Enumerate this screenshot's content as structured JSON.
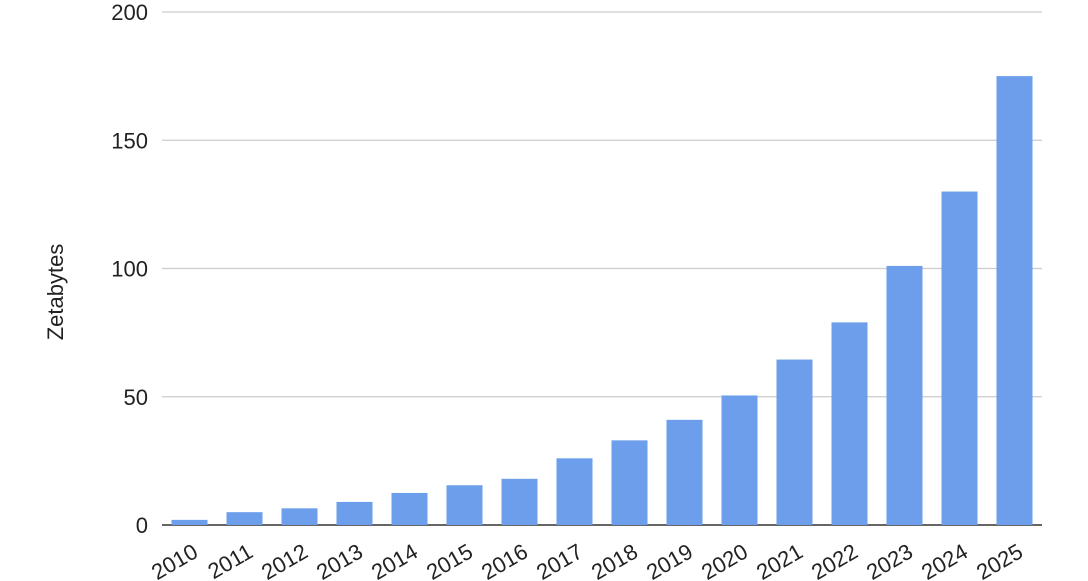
{
  "chart_data": {
    "type": "bar",
    "title": "",
    "xlabel": "",
    "ylabel": "Zetabytes",
    "categories": [
      "2010",
      "2011",
      "2012",
      "2013",
      "2014",
      "2015",
      "2016",
      "2017",
      "2018",
      "2019",
      "2020",
      "2021",
      "2022",
      "2023",
      "2024",
      "2025"
    ],
    "values": [
      2,
      5,
      6.5,
      9,
      12.5,
      15.5,
      18,
      26,
      33,
      41,
      50.5,
      64.5,
      79,
      101,
      130,
      175
    ],
    "ylim": [
      0,
      200
    ],
    "yticks": [
      0,
      50,
      100,
      150,
      200
    ],
    "grid": true,
    "legend": "none",
    "colors": {
      "bar": "#6d9eeb",
      "grid": "#cccccc",
      "baseline": "#333333"
    }
  }
}
